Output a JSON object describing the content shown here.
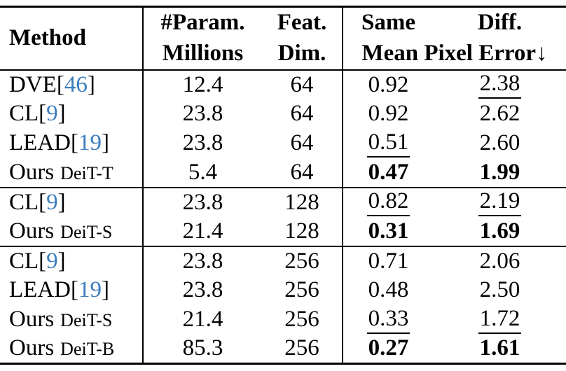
{
  "colors": {
    "citation": "#3c7dbe",
    "text": "#000000"
  },
  "header": {
    "method": "Method",
    "params": [
      "#Param.",
      "Millions"
    ],
    "feat": [
      "Feat.",
      "Dim."
    ],
    "same": "Same",
    "diff": "Diff.",
    "metric": "Mean Pixel Error↓"
  },
  "groups": [
    {
      "rows": [
        {
          "method": "DVE",
          "citation": "46",
          "variant": "",
          "params": "12.4",
          "feat": "64",
          "same": "0.92",
          "same_style": "plain",
          "diff": "2.38",
          "diff_style": "underline"
        },
        {
          "method": "CL",
          "citation": "9",
          "variant": "",
          "params": "23.8",
          "feat": "64",
          "same": "0.92",
          "same_style": "plain",
          "diff": "2.62",
          "diff_style": "plain"
        },
        {
          "method": "LEAD",
          "citation": "19",
          "variant": "",
          "params": "23.8",
          "feat": "64",
          "same": "0.51",
          "same_style": "underline",
          "diff": "2.60",
          "diff_style": "plain"
        },
        {
          "method": "Ours",
          "citation": "",
          "variant": "DeiT-T",
          "params": "5.4",
          "feat": "64",
          "same": "0.47",
          "same_style": "bold",
          "diff": "1.99",
          "diff_style": "bold"
        }
      ]
    },
    {
      "rows": [
        {
          "method": "CL",
          "citation": "9",
          "variant": "",
          "params": "23.8",
          "feat": "128",
          "same": "0.82",
          "same_style": "underline",
          "diff": "2.19",
          "diff_style": "underline"
        },
        {
          "method": "Ours",
          "citation": "",
          "variant": "DeiT-S",
          "params": "21.4",
          "feat": "128",
          "same": "0.31",
          "same_style": "bold",
          "diff": "1.69",
          "diff_style": "bold"
        }
      ]
    },
    {
      "rows": [
        {
          "method": "CL",
          "citation": "9",
          "variant": "",
          "params": "23.8",
          "feat": "256",
          "same": "0.71",
          "same_style": "plain",
          "diff": "2.06",
          "diff_style": "plain"
        },
        {
          "method": "LEAD",
          "citation": "19",
          "variant": "",
          "params": "23.8",
          "feat": "256",
          "same": "0.48",
          "same_style": "plain",
          "diff": "2.50",
          "diff_style": "plain"
        },
        {
          "method": "Ours",
          "citation": "",
          "variant": "DeiT-S",
          "params": "21.4",
          "feat": "256",
          "same": "0.33",
          "same_style": "underline",
          "diff": "1.72",
          "diff_style": "underline"
        },
        {
          "method": "Ours",
          "citation": "",
          "variant": "DeiT-B",
          "params": "85.3",
          "feat": "256",
          "same": "0.27",
          "same_style": "bold",
          "diff": "1.61",
          "diff_style": "bold"
        }
      ]
    }
  ]
}
